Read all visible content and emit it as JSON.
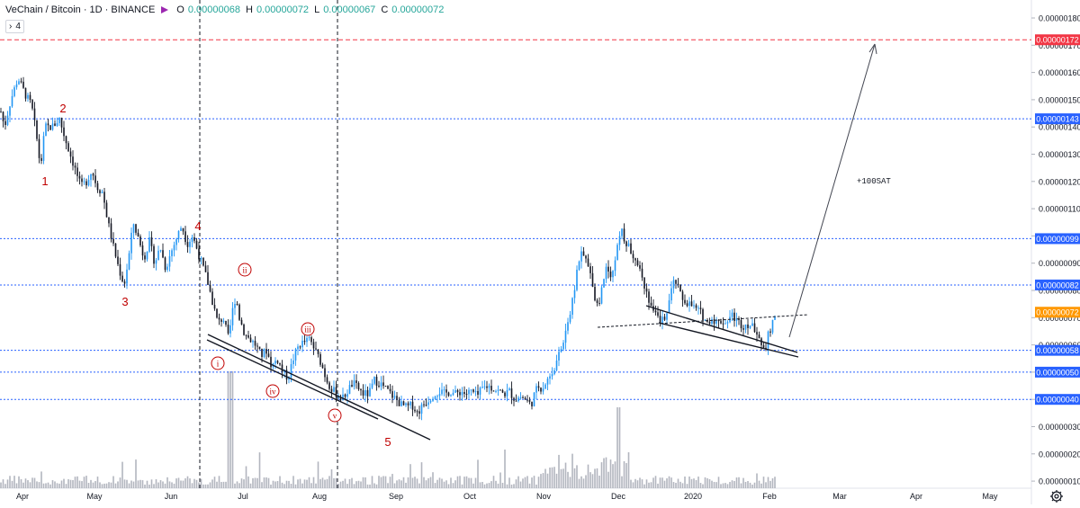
{
  "legend": {
    "symbol": "VeChain / Bitcoin · 1D · BINANCE",
    "o_label": "O",
    "o_value": "0.00000068",
    "h_label": "H",
    "h_value": "0.00000072",
    "l_label": "L",
    "l_value": "0.00000067",
    "c_label": "C",
    "c_value": "0.00000072",
    "flag_color": "#9c27b0"
  },
  "indicator_toggle": {
    "chevron": "›",
    "count": "4"
  },
  "colors": {
    "up": "#2196f3",
    "down": "#131722",
    "hline": "#2962ff",
    "target": "#f23645",
    "wave_label": "#c00000",
    "current": "#ff9800",
    "volume": "#b2b5be"
  },
  "chart_data": {
    "type": "candlestick",
    "symbol": "VEN/BTC",
    "timeframe": "1D",
    "exchange": "BINANCE",
    "y_axis_range": [
      1e-07,
      1.85e-07
    ],
    "y_ticks": [
      "0.00000180",
      "0.00000170",
      "0.00000160",
      "0.00000150",
      "0.00000140",
      "0.00000130",
      "0.00000120",
      "0.00000110",
      "0.00000100",
      "0.00000090",
      "0.00000080",
      "0.00000070",
      "0.00000060",
      "0.00000050",
      "0.00000040",
      "0.00000030",
      "0.00000020",
      "0.00000010"
    ],
    "x_ticks": [
      "Apr",
      "May",
      "Jun",
      "Jul",
      "Aug",
      "Sep",
      "Oct",
      "Nov",
      "Dec",
      "2020",
      "Feb",
      "Mar",
      "Apr",
      "May"
    ],
    "price_path": [
      [
        0,
        147
      ],
      [
        5,
        140
      ],
      [
        12,
        150
      ],
      [
        20,
        158
      ],
      [
        28,
        152
      ],
      [
        35,
        148
      ],
      [
        40,
        138
      ],
      [
        45,
        125
      ],
      [
        50,
        140
      ],
      [
        58,
        140
      ],
      [
        66,
        143
      ],
      [
        72,
        136
      ],
      [
        78,
        130
      ],
      [
        84,
        124
      ],
      [
        90,
        118
      ],
      [
        96,
        120
      ],
      [
        102,
        124
      ],
      [
        108,
        118
      ],
      [
        114,
        116
      ],
      [
        120,
        105
      ],
      [
        126,
        96
      ],
      [
        132,
        88
      ],
      [
        138,
        82
      ],
      [
        143,
        92
      ],
      [
        148,
        105
      ],
      [
        153,
        100
      ],
      [
        160,
        92
      ],
      [
        166,
        98
      ],
      [
        172,
        90
      ],
      [
        178,
        96
      ],
      [
        184,
        88
      ],
      [
        190,
        94
      ],
      [
        196,
        99
      ],
      [
        202,
        104
      ],
      [
        208,
        97
      ],
      [
        214,
        100
      ],
      [
        218,
        96
      ],
      [
        224,
        90
      ],
      [
        230,
        84
      ],
      [
        236,
        76
      ],
      [
        242,
        68
      ],
      [
        248,
        70
      ],
      [
        254,
        62
      ],
      [
        258,
        72
      ],
      [
        262,
        78
      ],
      [
        266,
        70
      ],
      [
        272,
        64
      ],
      [
        278,
        62
      ],
      [
        284,
        60
      ],
      [
        290,
        56
      ],
      [
        296,
        58
      ],
      [
        302,
        52
      ],
      [
        308,
        55
      ],
      [
        314,
        50
      ],
      [
        320,
        48
      ],
      [
        326,
        55
      ],
      [
        332,
        60
      ],
      [
        338,
        61
      ],
      [
        344,
        62
      ],
      [
        350,
        58
      ],
      [
        356,
        54
      ],
      [
        362,
        48
      ],
      [
        368,
        44
      ],
      [
        374,
        42
      ],
      [
        380,
        40
      ],
      [
        386,
        43
      ],
      [
        392,
        46
      ],
      [
        398,
        44
      ],
      [
        404,
        42
      ],
      [
        410,
        42
      ],
      [
        416,
        47
      ],
      [
        422,
        46
      ],
      [
        428,
        44
      ],
      [
        434,
        42
      ],
      [
        440,
        40
      ],
      [
        446,
        38
      ],
      [
        452,
        37
      ],
      [
        458,
        38
      ],
      [
        464,
        35
      ],
      [
        470,
        38
      ],
      [
        476,
        40
      ],
      [
        482,
        42
      ],
      [
        488,
        43
      ],
      [
        494,
        42
      ],
      [
        500,
        43
      ],
      [
        506,
        42
      ],
      [
        512,
        43
      ],
      [
        518,
        42
      ],
      [
        524,
        43
      ],
      [
        530,
        41
      ],
      [
        536,
        44
      ],
      [
        542,
        45
      ],
      [
        548,
        44
      ],
      [
        554,
        43
      ],
      [
        560,
        42
      ],
      [
        566,
        43
      ],
      [
        572,
        40
      ],
      [
        578,
        41
      ],
      [
        584,
        40
      ],
      [
        590,
        38
      ],
      [
        594,
        42
      ],
      [
        598,
        45
      ],
      [
        602,
        44
      ],
      [
        606,
        46
      ],
      [
        610,
        48
      ],
      [
        616,
        52
      ],
      [
        622,
        57
      ],
      [
        626,
        62
      ],
      [
        630,
        68
      ],
      [
        634,
        72
      ],
      [
        638,
        80
      ],
      [
        642,
        90
      ],
      [
        646,
        93
      ],
      [
        650,
        92
      ],
      [
        654,
        88
      ],
      [
        658,
        84
      ],
      [
        662,
        75
      ],
      [
        666,
        76
      ],
      [
        670,
        83
      ],
      [
        674,
        90
      ],
      [
        678,
        86
      ],
      [
        682,
        88
      ],
      [
        686,
        96
      ],
      [
        690,
        103
      ],
      [
        694,
        98
      ],
      [
        698,
        96
      ],
      [
        702,
        94
      ],
      [
        706,
        92
      ],
      [
        710,
        90
      ],
      [
        714,
        84
      ],
      [
        718,
        80
      ],
      [
        722,
        76
      ],
      [
        726,
        72
      ],
      [
        730,
        70
      ],
      [
        734,
        68
      ],
      [
        738,
        70
      ],
      [
        742,
        74
      ],
      [
        746,
        80
      ],
      [
        750,
        84
      ],
      [
        754,
        80
      ],
      [
        758,
        77
      ],
      [
        762,
        76
      ],
      [
        766,
        75
      ],
      [
        770,
        74
      ],
      [
        774,
        73
      ],
      [
        778,
        72
      ],
      [
        782,
        70
      ],
      [
        786,
        68
      ],
      [
        790,
        70
      ],
      [
        794,
        69
      ],
      [
        798,
        68
      ],
      [
        802,
        69
      ],
      [
        806,
        68
      ],
      [
        810,
        70
      ],
      [
        814,
        71
      ],
      [
        818,
        69
      ],
      [
        822,
        68
      ],
      [
        826,
        67
      ],
      [
        830,
        68
      ],
      [
        834,
        67
      ],
      [
        838,
        66
      ],
      [
        842,
        65
      ],
      [
        846,
        60
      ],
      [
        850,
        59
      ],
      [
        854,
        64
      ],
      [
        858,
        67
      ],
      [
        862,
        72
      ]
    ],
    "horizontal_levels": [
      {
        "price_label": "0.00000143",
        "style": "dotted"
      },
      {
        "price_label": "0.00000099",
        "style": "dotted"
      },
      {
        "price_label": "0.00000082",
        "style": "dotted"
      },
      {
        "price_label": "0.00000058",
        "style": "dotted"
      },
      {
        "price_label": "0.00000050",
        "style": "dotted"
      },
      {
        "price_label": "0.00000040",
        "style": "dotted"
      },
      {
        "price_label": "0.00000172",
        "style": "dashed-target"
      }
    ],
    "current_price_label": "0.00000072",
    "wave_labels": [
      "1",
      "2",
      "3",
      "4",
      "5"
    ],
    "subwave_labels": [
      "i",
      "ii",
      "iii",
      "iv",
      "v"
    ],
    "annotations": [
      "+100SAT"
    ]
  }
}
